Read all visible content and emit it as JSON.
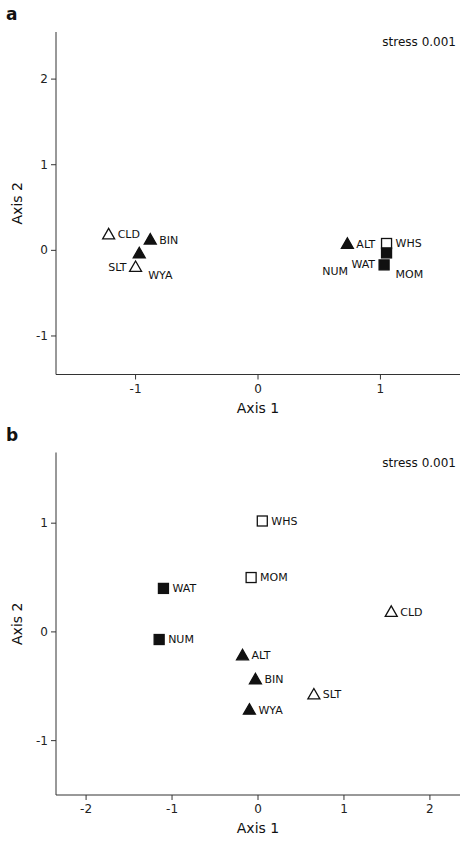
{
  "chart_data": [
    {
      "type": "scatter",
      "title": "a",
      "annotation": "stress 0.001",
      "x_label": "Axis 1",
      "y_label": "Axis 2",
      "xlim": [
        -1.65,
        1.65
      ],
      "ylim": [
        -1.45,
        2.55
      ],
      "xticks": [
        -1,
        0,
        1
      ],
      "yticks": [
        -1,
        0,
        1,
        2
      ],
      "series": [
        {
          "name": "CLD",
          "marker": "open_triangle",
          "x": [
            -1.22
          ],
          "values": [
            0.18
          ]
        },
        {
          "name": "BIN",
          "marker": "filled_triangle",
          "x": [
            -0.88
          ],
          "values": [
            0.12
          ]
        },
        {
          "name": "WYA",
          "marker": "filled_triangle",
          "x": [
            -0.97
          ],
          "values": [
            -0.04
          ]
        },
        {
          "name": "SLT",
          "marker": "open_triangle",
          "x": [
            -1.0
          ],
          "values": [
            -0.2
          ]
        },
        {
          "name": "ALT",
          "marker": "filled_triangle",
          "x": [
            0.73
          ],
          "values": [
            0.07
          ]
        },
        {
          "name": "WHS",
          "marker": "open_square",
          "x": [
            1.05
          ],
          "values": [
            0.08
          ]
        },
        {
          "name": "MOM",
          "marker": "filled_square",
          "x": [
            1.05
          ],
          "values": [
            -0.03
          ]
        },
        {
          "name": "WAT",
          "marker": "filled_square",
          "x": [
            1.03
          ],
          "values": [
            -0.17
          ]
        },
        {
          "name": "NUM",
          "marker": "none",
          "x": [
            0.63
          ],
          "values": [
            -0.25
          ]
        }
      ]
    },
    {
      "type": "scatter",
      "title": "b",
      "annotation": "stress 0.001",
      "x_label": "Axis 1",
      "y_label": "Axis 2",
      "xlim": [
        -2.35,
        2.35
      ],
      "ylim": [
        -1.5,
        1.65
      ],
      "xticks": [
        -2,
        -1,
        0,
        1,
        2
      ],
      "yticks": [
        -1,
        0,
        1
      ],
      "series": [
        {
          "name": "WHS",
          "marker": "open_square",
          "x": [
            0.05
          ],
          "values": [
            1.02
          ]
        },
        {
          "name": "MOM",
          "marker": "open_square",
          "x": [
            -0.08
          ],
          "values": [
            0.5
          ]
        },
        {
          "name": "WAT",
          "marker": "filled_square",
          "x": [
            -1.1
          ],
          "values": [
            0.4
          ]
        },
        {
          "name": "NUM",
          "marker": "filled_square",
          "x": [
            -1.15
          ],
          "values": [
            -0.07
          ]
        },
        {
          "name": "ALT",
          "marker": "filled_triangle",
          "x": [
            -0.18
          ],
          "values": [
            -0.22
          ]
        },
        {
          "name": "BIN",
          "marker": "filled_triangle",
          "x": [
            -0.03
          ],
          "values": [
            -0.44
          ]
        },
        {
          "name": "WYA",
          "marker": "filled_triangle",
          "x": [
            -0.1
          ],
          "values": [
            -0.72
          ]
        },
        {
          "name": "SLT",
          "marker": "open_triangle",
          "x": [
            0.65
          ],
          "values": [
            -0.58
          ]
        },
        {
          "name": "CLD",
          "marker": "open_triangle",
          "x": [
            1.55
          ],
          "values": [
            0.18
          ]
        }
      ]
    }
  ]
}
